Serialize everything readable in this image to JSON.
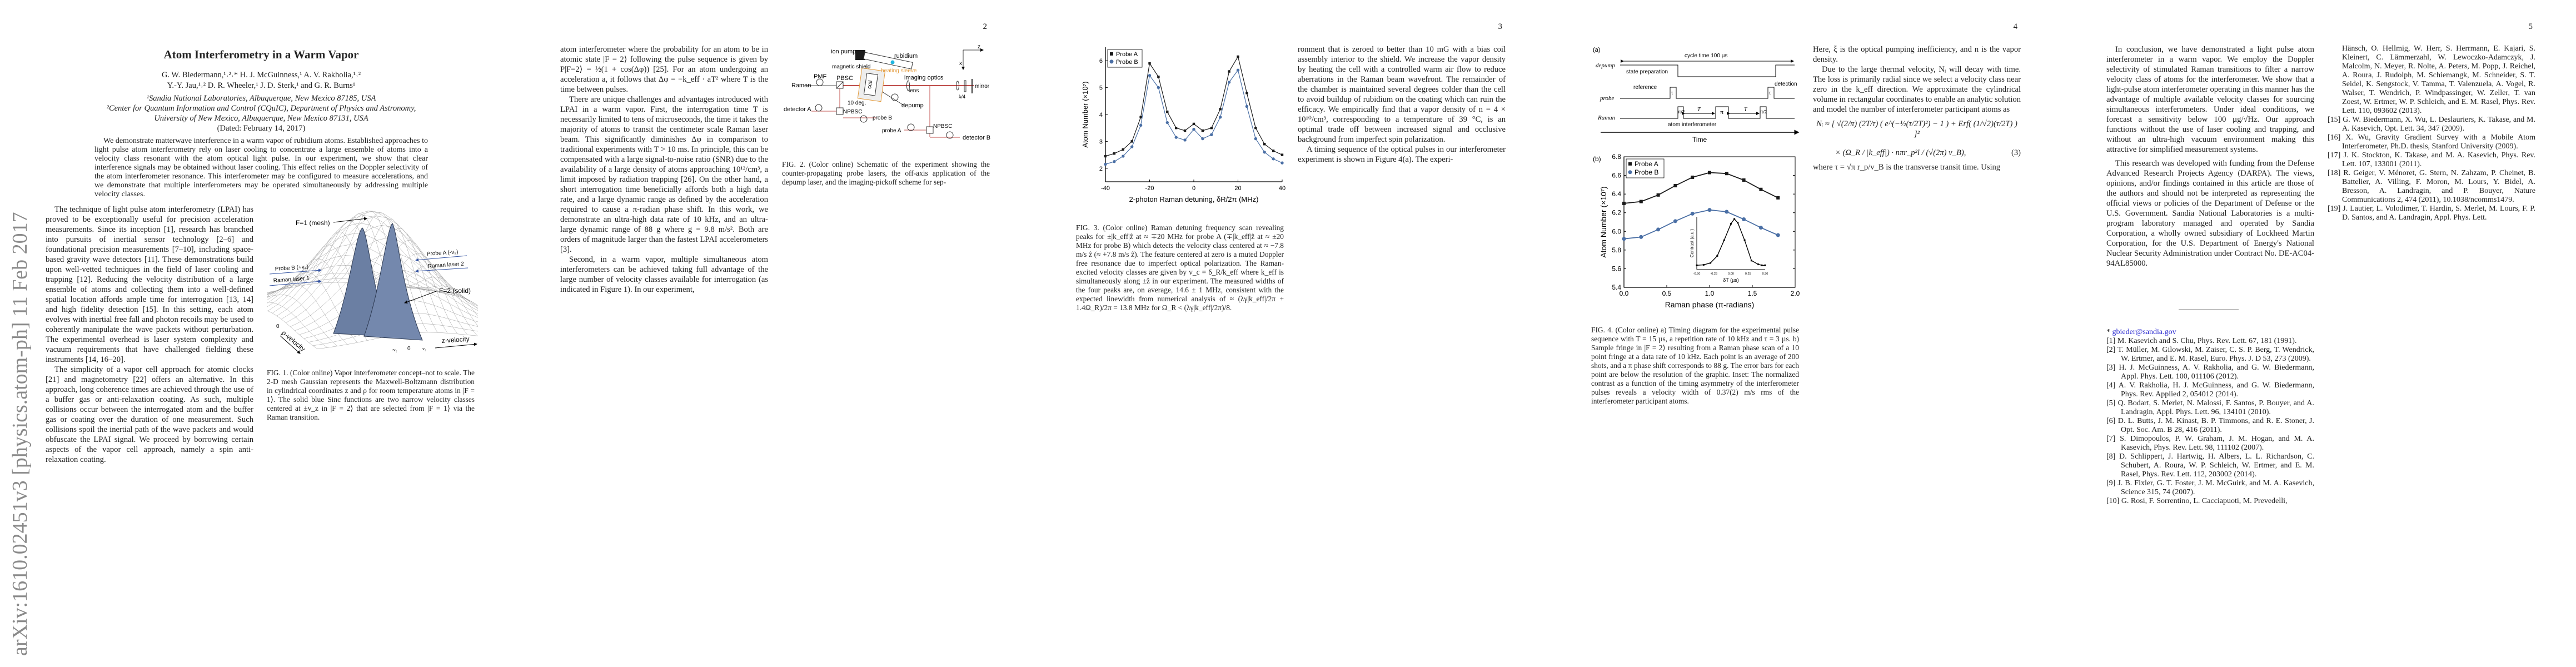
{
  "arxiv_stamp": "arXiv:1610.02451v3  [physics.atom-ph]  11 Feb 2017",
  "page1": {
    "title": "Atom Interferometry in a Warm Vapor",
    "authors_line1": "G. W. Biedermann,¹˒²˒* H. J. McGuinness,¹ A. V. Rakholia,¹˒²",
    "authors_line2": "Y.-Y. Jau,¹˒² D. R. Wheeler,¹ J. D. Sterk,¹ and G. R. Burns¹",
    "affiliation1": "¹Sandia National Laboratories, Albuquerque, New Mexico 87185, USA",
    "affiliation2a": "²Center for Quantum Information and Control (CQuIC), Department of Physics and Astronomy,",
    "affiliation2b": "University of New Mexico, Albuquerque, New Mexico 87131, USA",
    "dated": "(Dated: February 14, 2017)",
    "abstract": "We demonstrate matterwave interference in a warm vapor of rubidium atoms. Established approaches to light pulse atom interferometry rely on laser cooling to concentrate a large ensemble of atoms into a velocity class resonant with the atom optical light pulse. In our experiment, we show that clear interference signals may be obtained without laser cooling. This effect relies on the Doppler selectivity of the atom interferometer resonance. This interferometer may be configured to measure accelerations, and we demonstrate that multiple interferometers may be operated simultaneously by addressing multiple velocity classes.",
    "left_paragraphs": [
      "The technique of light pulse atom interferometry (LPAI) has proved to be exceptionally useful for precision acceleration measurements. Since its inception [1], research has branched into pursuits of inertial sensor technology [2–6] and foundational precision measurements [7–10], including space-based gravity wave detectors [11]. These demonstrations build upon well-vetted techniques in the field of laser cooling and trapping [12]. Reducing the velocity distribution of a large ensemble of atoms and collecting them into a well-defined spatial location affords ample time for interrogation [13, 14] and high fidelity detection [15]. In this setting, each atom evolves with inertial free fall and photon recoils may be used to coherently manipulate the wave packets without perturbation. The experimental overhead is laser system complexity and vacuum requirements that have challenged fielding these instruments [14, 16–20].",
      "The simplicity of a vapor cell approach for atomic clocks [21] and magnetometry [22] offers an alternative. In this approach, long coherence times are achieved through the use of a buffer gas or anti-relaxation coating. As such, multiple collisions occur between the interrogated atom and the buffer gas or coating over the duration of one measurement. Such collisions spoil the inertial path of the wave packets and would obfuscate the LPAI signal. We proceed by borrowing certain aspects of the vapor cell approach, namely a spin anti-relaxation coating."
    ],
    "figure1": {
      "label_f1": "F=1 (mesh)",
      "label_f2": "F=2 (solid)",
      "probe_b": "Probe B (+v₂)",
      "raman1": "Raman laser 1",
      "probe_a": "Probe A (-v₂)",
      "raman2": "Raman laser 2",
      "rho_axis": "ρ-velocity",
      "z_axis": "z-velocity",
      "rho_zero": "0",
      "tick_neg": "-v₂",
      "tick_zero": "0",
      "tick_pos": "v₂",
      "caption": "FIG. 1. (Color online) Vapor interferometer concept–not to scale. The 2-D mesh Gaussian represents the Maxwell-Boltzmann distribution in cylindrical coordinates z and ρ for room temperature atoms in |F = 1⟩. The solid blue Sinc functions are two narrow velocity classes centered at ±v_z in |F = 2⟩ that are selected from |F = 1⟩ via the Raman transition."
    }
  },
  "page2": {
    "page_number": "2",
    "left_paragraphs": [
      "atom interferometer where the probability for an atom to be in atomic state |F = 2⟩ following the pulse sequence is given by P|F=2⟩ = ½(1 + cos(Δφ)) [25]. For an atom undergoing an acceleration a, it follows that Δφ = −k_eff · aT² where T is the time between pulses.",
      "There are unique challenges and advantages introduced with LPAI in a warm vapor. First, the interrogation time T is necessarily limited to tens of microseconds, the time it takes the majority of atoms to transit the centimeter scale Raman laser beam. This significantly diminishes Δφ in comparison to traditional experiments with T > 10 ms. In principle, this can be compensated with a large signal-to-noise ratio (SNR) due to the availability of a large density of atoms approaching 10¹²/cm³, a limit imposed by radiation trapping [26]. On the other hand, a short interrogation time beneficially affords both a high data rate, and a large dynamic range as defined by the acceleration required to cause a π-radian phase shift. In this work, we demonstrate an ultra-high data rate of 10 kHz, and an ultra-large dynamic range of 88 g where g = 9.8 m/s². Both are orders of magnitude larger than the fastest LPAI accelerometers [3].",
      "Second, in a warm vapor, multiple simultaneous atom interferometers can be achieved taking full advantage of the large number of velocity classes available for interrogation (as indicated in Figure 1). In our experiment,"
    ],
    "figure2": {
      "ion_pump": "ion pump",
      "rubidium": "rubidium",
      "magnetic_shield": "magnetic shield",
      "heating_sleeve": "heating sleeve",
      "pmf": "PMF",
      "raman": "Raman",
      "pbsc": "PBSC",
      "cell": "cell",
      "imaging_optics": "imaging optics",
      "lens": "lens",
      "mirror": "mirror",
      "quarter_wave": "λ/4",
      "axis_z": "z",
      "axis_x": "x",
      "angle": "10 deg.",
      "detector_a": "detector A",
      "npbsc_1": "NPBSC",
      "depump": "depump",
      "probe_b": "probe B",
      "probe_a": "probe A",
      "npbsc_2": "NPBSC",
      "detector_b": "detector B",
      "caption": "FIG. 2. (Color online) Schematic of the experiment showing the counter-propagating probe lasers, the off-axis application of the depump laser, and the imaging-pickoff scheme for sep-"
    },
    "colors": {
      "beam": "#c0504d",
      "heating_sleeve": "#e39a3b",
      "rubidium": "#1fb6e0"
    }
  },
  "page3": {
    "page_number": "3",
    "right_paragraphs": [
      "ronment that is zeroed to better than 10 mG with a bias coil assembly interior to the shield. We increase the vapor density by heating the cell with a controlled warm air flow to reduce aberrations in the Raman beam wavefront. The remainder of the chamber is maintained several degrees colder than the cell to avoid buildup of rubidium on the coating which can ruin the efficacy. We empirically find that a vapor density of n = 4 × 10¹⁰/cm³, corresponding to a temperature of 39 °C, is an optimal trade off between increased signal and occlusive background from imperfect spin polarization.",
      "A timing sequence of the optical pulses in our interferometer experiment is shown in Figure 4(a). The experi-"
    ],
    "figure3_caption": "FIG. 3. (Color online) Raman detuning frequency scan revealing peaks for ±|k_eff|ẑ at ≈ ∓20 MHz for probe A (∓|k_eff|ẑ at ≈ ±20 MHz for probe B) which detects the velocity class centered at ≈ −7.8 m/s ẑ (≈ +7.8 m/s ẑ). The feature centered at zero is a muted Doppler free resonance due to imperfect optical polarization. The Raman-excited velocity classes are given by v_c = δ_R/k_eff where k_eff is simultaneously along ±ẑ in our experiment. The measured widths of the four peaks are, on average, 14.6 ± 1 MHz, consistent with the expected linewidth from numerical analysis of ≈ (λγ|k_eff|/2π + 1.4Ω_R)/2π = 13.8 MHz for Ω_R < (λγ|k_eff|/2π)/8."
  },
  "page4": {
    "page_number": "4",
    "right_paragraphs": [
      "Here, ξ is the optical pumping inefficiency, and n is the vapor density.",
      "Due to the large thermal velocity, Nᵢ will decay with time. The loss is primarily radial since we select a velocity class near zero in the k_eff direction. We approximate the cylindrical volume in rectangular coordinates to enable an analytic solution and model the number of interferometer participant atoms as"
    ],
    "equation_line1": "Nᵢ ≈ [ √(2/π) (2T/τ) ( e^(−½(τ/2T)²) − 1 ) + Erf( (1/√2)(τ/2T) ) ]²",
    "equation_line2": "× (Ω_R / |k_eff|) · nπr_p²l / (√(2π) v_B),",
    "equation_number": "(3)",
    "after_equation": "where τ = √π r_p/v_B is the transverse transit time. Using",
    "figure4a": {
      "panel": "(a)",
      "cycle": "cycle time 100 µs",
      "depump": "depump",
      "state_prep": "state preparation",
      "probe": "probe",
      "reference": "reference",
      "detection": "detection",
      "tau": "τ",
      "raman": "Raman",
      "pi_half": "π/2",
      "pi": "π",
      "T": "T",
      "atom_interferometer": "atom interferometer",
      "time": "Time"
    },
    "figure4_caption": "FIG. 4. (Color online) a) Timing diagram for the experimental pulse sequence with T = 15 µs, a repetition rate of 10 kHz and τ = 3 µs. b) Sample fringe in |F = 2⟩ resulting from a Raman phase scan of a 10 point fringe at a data rate of 10 kHz. Each point is an average of 200 shots, and a π phase shift corresponds to 88 g. The error bars for each point are below the resolution of the graphic. Inset: The normalized contrast as a function of the timing asymmetry of the interferometer pulses reveals a velocity width of 0.37(2) m/s rms of the interferometer participant atoms."
  },
  "page5": {
    "page_number": "5",
    "left_paragraphs": [
      "In conclusion, we have demonstrated a light pulse atom interferometer in a warm vapor. We employ the Doppler selectivity of stimulated Raman transitions to filter a narrow velocity class of atoms for the interferometer. We show that a light-pulse atom interferometer operating in this manner has the advantage of multiple available velocity classes for sourcing simultaneous interferometers. Under ideal conditions, we forecast a sensitivity below 100 µg/√Hz. Our approach functions without the use of laser cooling and trapping, and without an ultra-high vacuum environment making this attractive for simplified measurement systems.",
      "This research was developed with funding from the Defense Advanced Research Projects Agency (DARPA). The views, opinions, and/or findings contained in this article are those of the authors and should not be interpreted as representing the official views or policies of the Department of Defense or the U.S. Government. Sandia National Laboratories is a multi-program laboratory managed and operated by Sandia Corporation, a wholly owned subsidiary of Lockheed Martin Corporation, for the U.S. Department of Energy's National Nuclear Security Administration under Contract No. DE-AC04-94AL85000."
    ],
    "footnote_marker": "*",
    "footnote_email": "gbieder@sandia.gov",
    "references_left": [
      "[1] M. Kasevich and S. Chu, Phys. Rev. Lett. 67, 181 (1991).",
      "[2] T. Müller, M. Gilowski, M. Zaiser, C. S. P. Berg, T. Wendrick, W. Ertmer, and E. M. Rasel, Euro. Phys. J. D 53, 273 (2009).",
      "[3] H. J. McGuinness, A. V. Rakholia, and G. W. Biedermann, Appl. Phys. Lett. 100, 011106 (2012).",
      "[4] A. V. Rakholia, H. J. McGuinness, and G. W. Biedermann, Phys. Rev. Applied 2, 054012 (2014).",
      "[5] Q. Bodart, S. Merlet, N. Malossi, F. Santos, P. Bouyer, and A. Landragin, Appl. Phys. Lett. 96, 134101 (2010).",
      "[6] D. L. Butts, J. M. Kinast, B. P. Timmons, and R. E. Stoner, J. Opt. Soc. Am. B 28, 416 (2011).",
      "[7] S. Dimopoulos, P. W. Graham, J. M. Hogan, and M. A. Kasevich, Phys. Rev. Lett. 98, 111102 (2007).",
      "[8] D. Schlippert, J. Hartwig, H. Albers, L. L. Richardson, C. Schubert, A. Roura, W. P. Schleich, W. Ertmer, and E. M. Rasel, Phys. Rev. Lett. 112, 203002 (2014).",
      "[9] J. B. Fixler, G. T. Foster, J. M. McGuirk, and M. A. Kasevich, Science 315, 74 (2007).",
      "[10] G. Rosi, F. Sorrentino, L. Cacciapuoti, M. Prevedelli,"
    ],
    "references_right": [
      "Hänsch, O. Hellmig, W. Herr, S. Herrmann, E. Kajari, S. Kleinert, C. Lämmerzahl, W. Lewoczko-Adamczyk, J. Malcolm, N. Meyer, R. Nolte, A. Peters, M. Popp, J. Reichel, A. Roura, J. Rudolph, M. Schiemangk, M. Schneider, S. T. Seidel, K. Sengstock, V. Tamma, T. Valenzuela, A. Vogel, R. Walser, T. Wendrich, P. Windpassinger, W. Zeller, T. van Zoest, W. Ertmer, W. P. Schleich, and E. M. Rasel, Phys. Rev. Lett. 110, 093602 (2013).",
      "[15] G. W. Biedermann, X. Wu, L. Deslauriers, K. Takase, and M. A. Kasevich, Opt. Lett. 34, 347 (2009).",
      "[16] X. Wu, Gravity Gradient Survey with a Mobile Atom Interferometer, Ph.D. thesis, Stanford University (2009).",
      "[17] J. K. Stockton, K. Takase, and M. A. Kasevich, Phys. Rev. Lett. 107, 133001 (2011).",
      "[18] R. Geiger, V. Ménoret, G. Stern, N. Zahzam, P. Cheinet, B. Battelier, A. Villing, F. Moron, M. Lours, Y. Bidel, A. Bresson, A. Landragin, and P. Bouyer, Nature Communications 2, 474 (2011), 10.1038/ncomms1479.",
      "[19] J. Lautier, L. Volodimer, T. Hardin, S. Merlet, M. Lours, F. P. D. Santos, and A. Landragin, Appl. Phys. Lett."
    ]
  },
  "chart_data": [
    {
      "type": "scatter",
      "figure": "FIG. 3",
      "xlabel": "2-photon Raman detuning, δR/2π (MHz)",
      "ylabel": "Atom Number (×10⁷)",
      "xlim": [
        -40,
        40
      ],
      "ylim": [
        1.5,
        6.5
      ],
      "xticks": [
        -40,
        -20,
        0,
        20,
        40
      ],
      "yticks": [
        2,
        3,
        4,
        5,
        6
      ],
      "legend": "top-left",
      "x": [
        -40,
        -36,
        -32,
        -28,
        -24,
        -20,
        -16,
        -12,
        -8,
        -4,
        0,
        4,
        8,
        12,
        16,
        20,
        24,
        28,
        32,
        36,
        40
      ],
      "series": [
        {
          "name": "Probe A",
          "color": "#1a1a1a",
          "marker": "square",
          "values": [
            2.45,
            2.55,
            2.7,
            3.0,
            3.9,
            5.9,
            5.4,
            4.1,
            3.5,
            3.4,
            3.65,
            3.4,
            3.5,
            4.2,
            5.6,
            6.15,
            4.8,
            3.5,
            2.9,
            2.65,
            2.5
          ]
        },
        {
          "name": "Probe B",
          "color": "#4a6fa5",
          "marker": "circle",
          "values": [
            2.15,
            2.25,
            2.45,
            2.8,
            3.6,
            5.45,
            5.0,
            3.7,
            3.15,
            3.05,
            3.45,
            3.1,
            3.25,
            3.9,
            5.2,
            5.65,
            4.3,
            3.1,
            2.6,
            2.35,
            2.2
          ]
        }
      ]
    },
    {
      "type": "line",
      "figure": "FIG. 4(b)",
      "panel": "(b)",
      "xlabel": "Raman phase (π-radians)",
      "ylabel": "Atom Number (×10⁷)",
      "xlim": [
        0,
        2
      ],
      "ylim": [
        5.4,
        6.8
      ],
      "xticks": [
        "0.0",
        "0.5",
        "1.0",
        "1.5",
        "2.0"
      ],
      "yticks": [
        "5.4",
        "5.6",
        "5.8",
        "6.0",
        "6.2",
        "6.4",
        "6.6",
        "6.8"
      ],
      "legend": "top-left",
      "x": [
        0,
        0.2,
        0.4,
        0.6,
        0.8,
        1.0,
        1.2,
        1.4,
        1.6,
        1.8
      ],
      "series": [
        {
          "name": "Probe A",
          "color": "#1a1a1a",
          "marker": "square",
          "values": [
            6.3,
            6.32,
            6.39,
            6.49,
            6.58,
            6.63,
            6.62,
            6.55,
            6.45,
            6.36
          ]
        },
        {
          "name": "Probe B",
          "color": "#4a6fa5",
          "marker": "circle",
          "values": [
            5.92,
            5.94,
            6.02,
            6.11,
            6.19,
            6.23,
            6.21,
            6.13,
            6.04,
            5.96
          ]
        }
      ],
      "inset": {
        "xlabel": "δT (µs)",
        "ylabel": "Contrast (a.u.)",
        "xlim": [
          -0.5,
          0.5
        ],
        "xticks": [
          "-0.50",
          "-0.25",
          "0.00",
          "0.25",
          "0.50"
        ],
        "x": [
          -0.5,
          -0.4,
          -0.3,
          -0.2,
          -0.1,
          0.0,
          0.05,
          0.1,
          0.2,
          0.3,
          0.4,
          0.45,
          0.5
        ],
        "values": [
          0.02,
          0.03,
          0.07,
          0.22,
          0.55,
          0.9,
          1.0,
          0.92,
          0.55,
          0.12,
          0.04,
          0.02,
          0.02
        ]
      }
    }
  ]
}
